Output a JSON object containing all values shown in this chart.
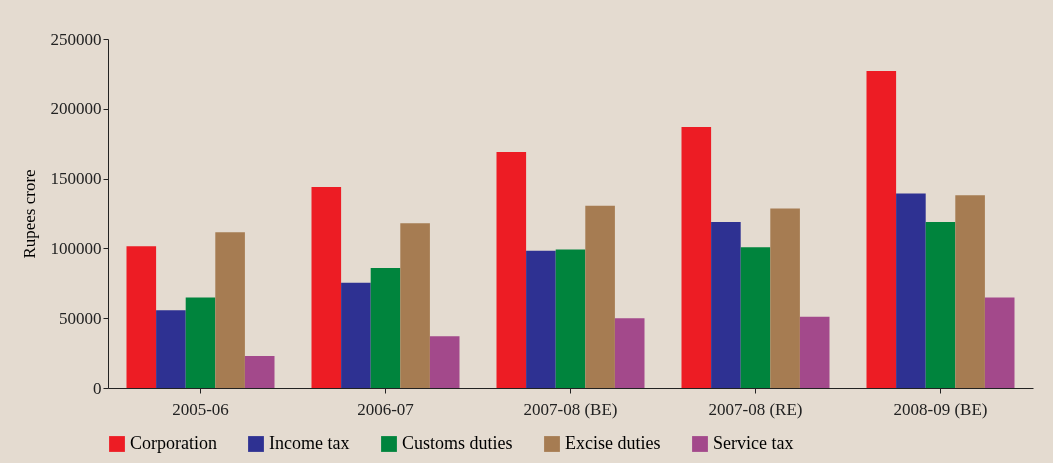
{
  "chart_data": {
    "type": "bar",
    "ylabel": "Rupees crore",
    "categories": [
      "2005-06",
      "2006-07",
      "2007-08 (BE)",
      "2007-08 (RE)",
      "2008-09 (BE)"
    ],
    "series": [
      {
        "name": "Corporation",
        "color": "#ed1c24",
        "values": [
          101500,
          144000,
          169000,
          187000,
          227000
        ]
      },
      {
        "name": "Income tax",
        "color": "#2e3192",
        "values": [
          55700,
          75400,
          98300,
          118900,
          139300
        ]
      },
      {
        "name": "Customs duties",
        "color": "#00843d",
        "values": [
          64800,
          86000,
          99200,
          100800,
          118900
        ]
      },
      {
        "name": "Excise duties",
        "color": "#a67c52",
        "values": [
          111500,
          118000,
          130500,
          128500,
          138000
        ]
      },
      {
        "name": "Service tax",
        "color": "#a3498b",
        "values": [
          23000,
          37000,
          50000,
          51000,
          64800
        ]
      }
    ],
    "ylim": [
      0,
      250000
    ],
    "yticks": [
      0,
      50000,
      100000,
      150000,
      200000,
      250000
    ],
    "grid": false,
    "legend": "bottom"
  }
}
